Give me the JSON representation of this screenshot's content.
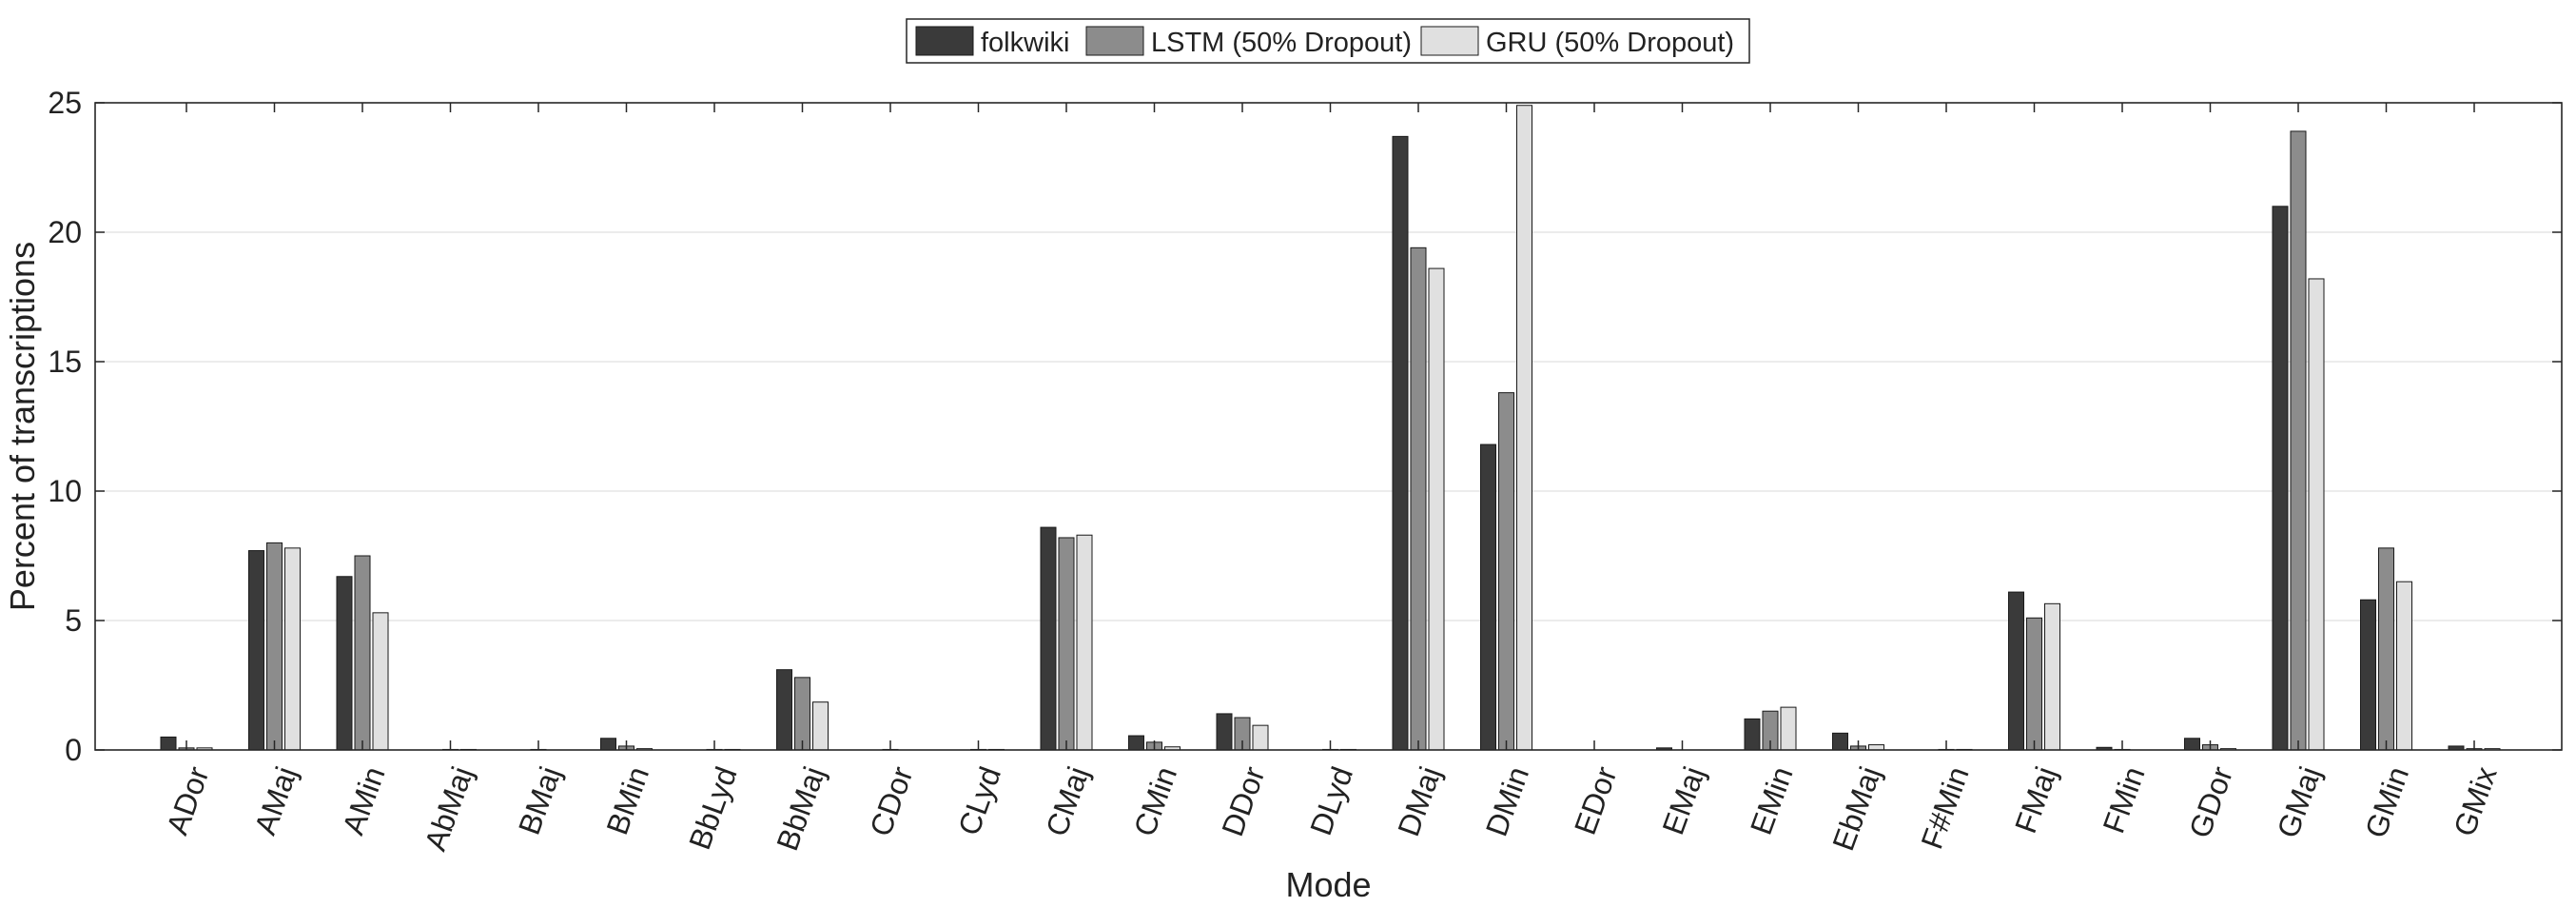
{
  "chart_data": {
    "type": "bar",
    "xlabel": "Mode",
    "ylabel": "Percent of transcriptions",
    "ylim": [
      0,
      25
    ],
    "yticks": [
      0,
      5,
      10,
      15,
      20,
      25
    ],
    "grid": "horizontal",
    "legend_position": "top-center",
    "categories": [
      "ADor",
      "AMaj",
      "AMin",
      "AbMaj",
      "BMaj",
      "BMin",
      "BbLyd",
      "BbMaj",
      "CDor",
      "CLyd",
      "CMaj",
      "CMin",
      "DDor",
      "DLyd",
      "DMaj",
      "DMin",
      "EDor",
      "EMaj",
      "EMin",
      "EbMaj",
      "F#Min",
      "FMaj",
      "FMin",
      "GDor",
      "GMaj",
      "GMin",
      "GMix"
    ],
    "series": [
      {
        "name": "folkwiki",
        "color": "#3a3a3a",
        "values": [
          0.5,
          7.7,
          6.7,
          0.0,
          0.0,
          0.45,
          0.0,
          3.1,
          0.0,
          0.0,
          8.6,
          0.55,
          1.4,
          0.0,
          23.7,
          11.8,
          0.0,
          0.08,
          1.2,
          0.65,
          0.0,
          6.1,
          0.1,
          0.45,
          21.0,
          5.8,
          0.15
        ]
      },
      {
        "name": "LSTM (50% Dropout)",
        "color": "#8c8c8c",
        "values": [
          0.08,
          8.0,
          7.5,
          0.02,
          0.02,
          0.15,
          0.02,
          2.8,
          0.02,
          0.02,
          8.2,
          0.3,
          1.25,
          0.02,
          19.4,
          13.8,
          0.0,
          0.0,
          1.5,
          0.15,
          0.02,
          5.1,
          0.02,
          0.2,
          23.9,
          7.8,
          0.05
        ]
      },
      {
        "name": "GRU (50% Dropout)",
        "color": "#e0e0e0",
        "values": [
          0.08,
          7.8,
          5.3,
          0.02,
          0.0,
          0.05,
          0.02,
          1.85,
          0.0,
          0.02,
          8.3,
          0.12,
          0.95,
          0.02,
          18.6,
          24.9,
          0.0,
          0.0,
          1.65,
          0.2,
          0.02,
          5.65,
          0.0,
          0.05,
          18.2,
          6.5,
          0.05
        ]
      }
    ]
  }
}
